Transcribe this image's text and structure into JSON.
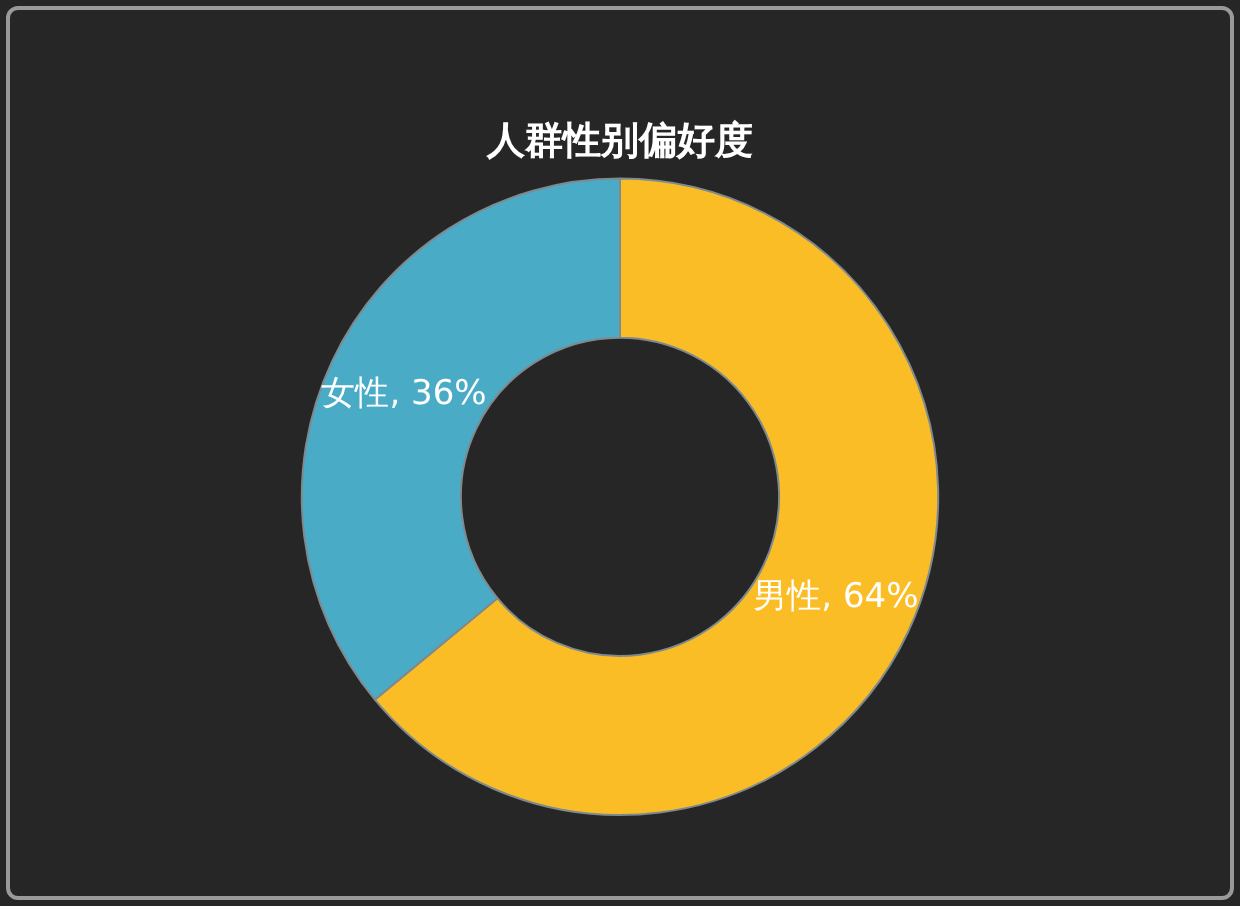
{
  "chart_data": {
    "type": "donut",
    "title": "人群性别偏好度",
    "categories": [
      "男性",
      "女性"
    ],
    "values": [
      64,
      36
    ],
    "colors": [
      "#fbbd26",
      "#4aabc6"
    ],
    "value_labels": [
      ", 64%",
      ", 36%"
    ]
  }
}
